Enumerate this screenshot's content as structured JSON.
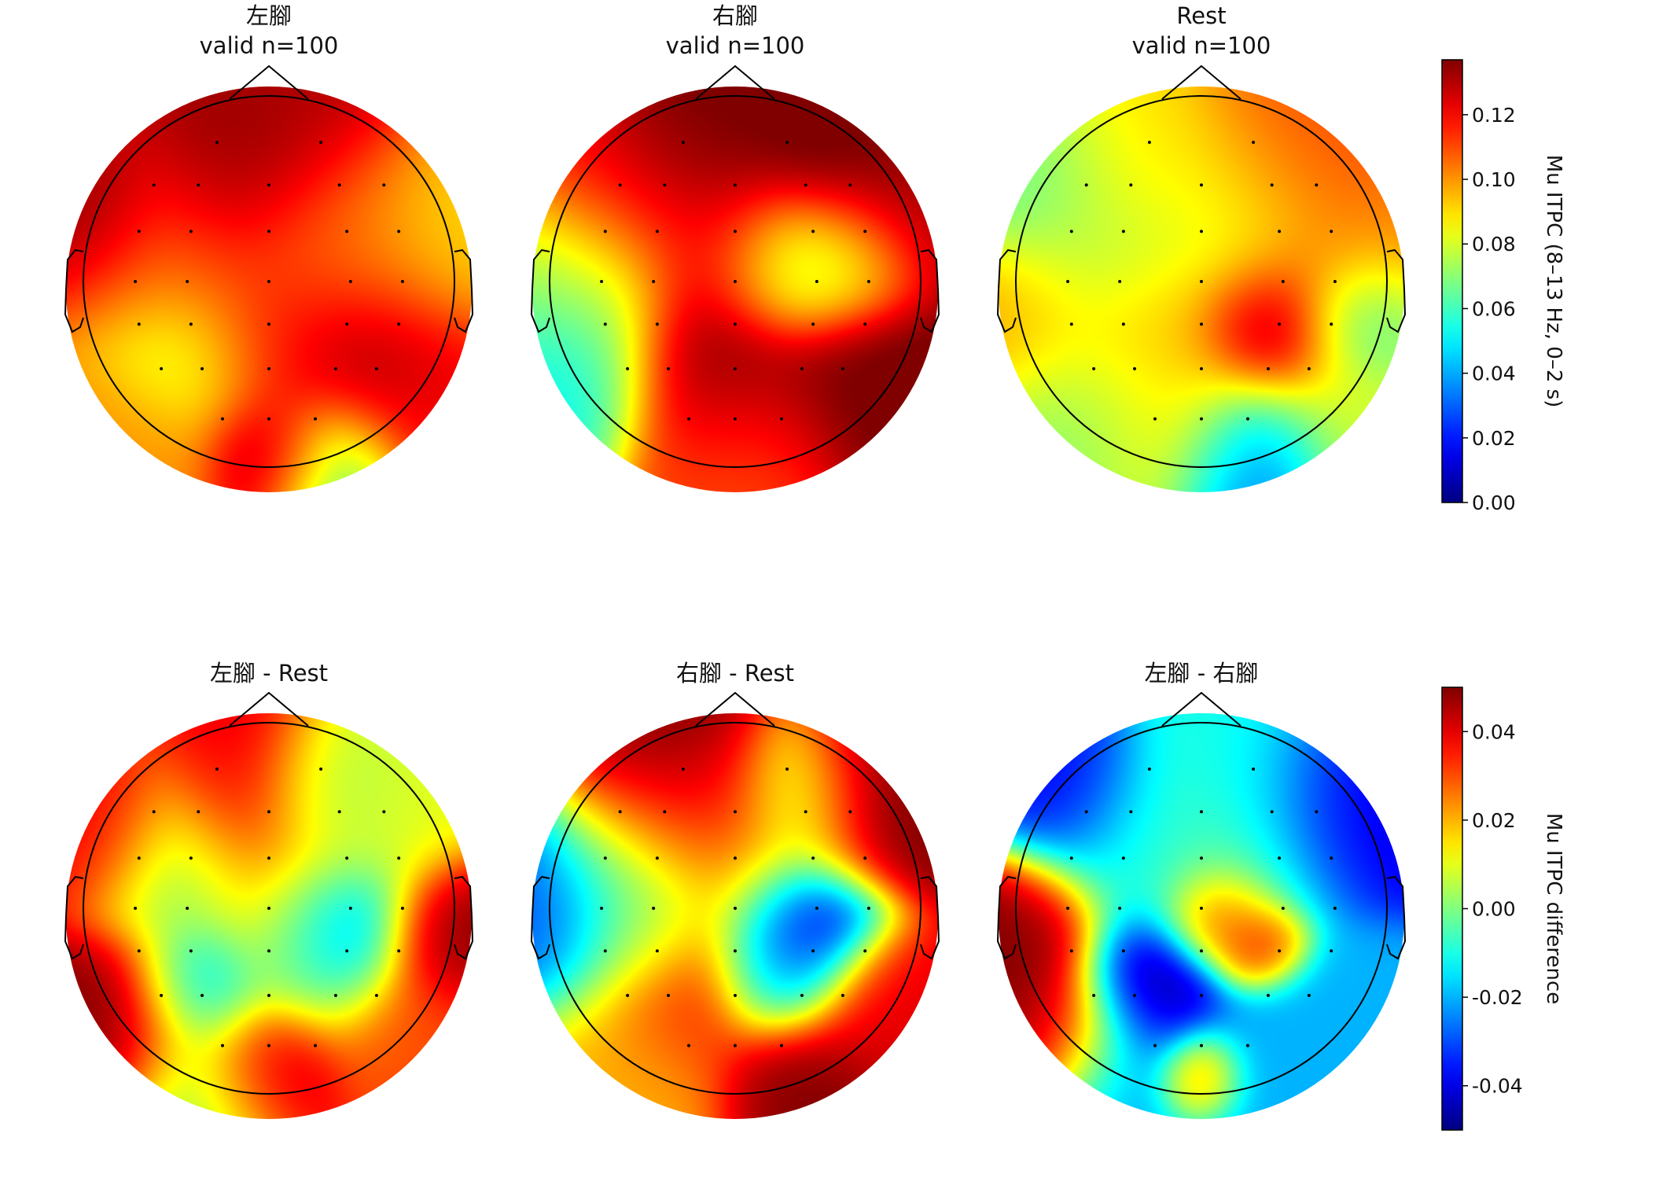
{
  "chart_data": [
    {
      "type": "heatmap",
      "subtype": "eeg-topomap",
      "title": "左腳",
      "subtitle": "valid n=100",
      "colormap": "jet",
      "colorbar_group": "itpc",
      "field_sources": [
        {
          "x": 0.0,
          "y": 0.62,
          "value": 0.13,
          "spread": 0.35
        },
        {
          "x": -0.2,
          "y": 0.58,
          "value": 0.14,
          "spread": 0.25
        },
        {
          "x": -0.85,
          "y": 0.4,
          "value": 0.14,
          "spread": 0.22
        },
        {
          "x": 0.75,
          "y": 0.2,
          "value": 0.09,
          "spread": 0.3
        },
        {
          "x": -0.5,
          "y": 0.2,
          "value": 0.1,
          "spread": 0.3
        },
        {
          "x": 0.3,
          "y": 0.22,
          "value": 0.1,
          "spread": 0.25
        },
        {
          "x": 0.45,
          "y": -0.3,
          "value": 0.14,
          "spread": 0.28
        },
        {
          "x": -0.35,
          "y": -0.35,
          "value": 0.07,
          "spread": 0.22
        },
        {
          "x": 0.0,
          "y": -0.8,
          "value": 0.14,
          "spread": 0.18
        },
        {
          "x": 0.3,
          "y": -0.85,
          "value": 0.06,
          "spread": 0.22
        },
        {
          "x": -0.6,
          "y": -0.75,
          "value": 0.1,
          "spread": 0.25
        },
        {
          "x": 0.8,
          "y": -0.55,
          "value": 0.12,
          "spread": 0.25
        },
        {
          "x": 0.0,
          "y": 0.0,
          "value": 0.11,
          "spread": 0.35
        },
        {
          "x": 0.0,
          "y": -0.3,
          "value": 0.12,
          "spread": 0.25
        }
      ]
    },
    {
      "type": "heatmap",
      "subtype": "eeg-topomap",
      "title": "右腳",
      "subtitle": "valid n=100",
      "colormap": "jet",
      "colorbar_group": "itpc",
      "field_sources": [
        {
          "x": -0.2,
          "y": 0.75,
          "value": 0.14,
          "spread": 0.25
        },
        {
          "x": 0.55,
          "y": 0.65,
          "value": 0.14,
          "spread": 0.3
        },
        {
          "x": 0.85,
          "y": 0.4,
          "value": 0.13,
          "spread": 0.25
        },
        {
          "x": -0.5,
          "y": 0.45,
          "value": 0.12,
          "spread": 0.3
        },
        {
          "x": 0.25,
          "y": 0.1,
          "value": 0.06,
          "spread": 0.2
        },
        {
          "x": 0.55,
          "y": 0.15,
          "value": 0.07,
          "spread": 0.2
        },
        {
          "x": -0.75,
          "y": 0.0,
          "value": 0.07,
          "spread": 0.28
        },
        {
          "x": -0.1,
          "y": -0.35,
          "value": 0.14,
          "spread": 0.28
        },
        {
          "x": 0.65,
          "y": -0.45,
          "value": 0.14,
          "spread": 0.3
        },
        {
          "x": -0.8,
          "y": -0.45,
          "value": 0.05,
          "spread": 0.25
        },
        {
          "x": 0.0,
          "y": -0.8,
          "value": 0.11,
          "spread": 0.3
        },
        {
          "x": 0.0,
          "y": 0.2,
          "value": 0.12,
          "spread": 0.25
        }
      ]
    },
    {
      "type": "heatmap",
      "subtype": "eeg-topomap",
      "title": "Rest",
      "subtitle": "valid n=100",
      "colormap": "jet",
      "colorbar_group": "itpc",
      "field_sources": [
        {
          "x": 0.5,
          "y": 0.6,
          "value": 0.11,
          "spread": 0.3
        },
        {
          "x": -0.45,
          "y": 0.55,
          "value": 0.09,
          "spread": 0.3
        },
        {
          "x": -0.8,
          "y": 0.5,
          "value": 0.06,
          "spread": 0.25
        },
        {
          "x": 0.15,
          "y": 0.3,
          "value": 0.08,
          "spread": 0.3
        },
        {
          "x": -0.5,
          "y": 0.1,
          "value": 0.07,
          "spread": 0.25
        },
        {
          "x": -0.85,
          "y": -0.1,
          "value": 0.1,
          "spread": 0.25
        },
        {
          "x": 0.8,
          "y": 0.1,
          "value": 0.1,
          "spread": 0.25
        },
        {
          "x": 0.35,
          "y": -0.2,
          "value": 0.14,
          "spread": 0.22
        },
        {
          "x": 0.8,
          "y": -0.15,
          "value": 0.05,
          "spread": 0.18
        },
        {
          "x": -0.3,
          "y": -0.2,
          "value": 0.1,
          "spread": 0.25
        },
        {
          "x": -0.55,
          "y": -0.55,
          "value": 0.07,
          "spread": 0.28
        },
        {
          "x": 0.25,
          "y": -0.8,
          "value": 0.03,
          "spread": 0.22
        },
        {
          "x": 0.7,
          "y": -0.6,
          "value": 0.08,
          "spread": 0.25
        },
        {
          "x": -0.1,
          "y": -0.6,
          "value": 0.09,
          "spread": 0.25
        }
      ]
    },
    {
      "type": "heatmap",
      "subtype": "eeg-topomap",
      "title": "左腳 - Rest",
      "subtitle": "",
      "colormap": "jet",
      "colorbar_group": "diff",
      "field_sources": [
        {
          "x": -0.1,
          "y": 0.55,
          "value": 0.04,
          "spread": 0.25
        },
        {
          "x": 0.3,
          "y": 0.55,
          "value": 0.0,
          "spread": 0.2
        },
        {
          "x": 0.55,
          "y": 0.45,
          "value": 0.01,
          "spread": 0.25
        },
        {
          "x": -0.85,
          "y": 0.4,
          "value": 0.04,
          "spread": 0.22
        },
        {
          "x": -0.45,
          "y": 0.2,
          "value": 0.0,
          "spread": 0.25
        },
        {
          "x": 0.1,
          "y": 0.1,
          "value": 0.02,
          "spread": 0.25
        },
        {
          "x": 0.35,
          "y": -0.05,
          "value": -0.04,
          "spread": 0.2
        },
        {
          "x": 0.85,
          "y": -0.1,
          "value": 0.05,
          "spread": 0.2
        },
        {
          "x": -0.35,
          "y": -0.35,
          "value": -0.02,
          "spread": 0.18
        },
        {
          "x": -0.75,
          "y": -0.5,
          "value": 0.05,
          "spread": 0.25
        },
        {
          "x": 0.0,
          "y": -0.75,
          "value": 0.05,
          "spread": 0.2
        },
        {
          "x": 0.7,
          "y": -0.6,
          "value": 0.03,
          "spread": 0.25
        },
        {
          "x": -0.3,
          "y": -0.85,
          "value": 0.0,
          "spread": 0.25
        },
        {
          "x": 0.2,
          "y": -0.2,
          "value": 0.0,
          "spread": 0.25
        }
      ]
    },
    {
      "type": "heatmap",
      "subtype": "eeg-topomap",
      "title": "右腳 - Rest",
      "subtitle": "",
      "colormap": "jet",
      "colorbar_group": "diff",
      "field_sources": [
        {
          "x": -0.35,
          "y": 0.7,
          "value": 0.05,
          "spread": 0.25
        },
        {
          "x": -0.1,
          "y": 0.5,
          "value": 0.04,
          "spread": 0.22
        },
        {
          "x": 0.3,
          "y": 0.55,
          "value": 0.0,
          "spread": 0.2
        },
        {
          "x": 0.65,
          "y": 0.55,
          "value": 0.05,
          "spread": 0.25
        },
        {
          "x": -0.45,
          "y": 0.3,
          "value": 0.01,
          "spread": 0.25
        },
        {
          "x": 0.0,
          "y": 0.2,
          "value": 0.02,
          "spread": 0.25
        },
        {
          "x": -0.85,
          "y": 0.0,
          "value": -0.03,
          "spread": 0.28
        },
        {
          "x": -0.45,
          "y": -0.05,
          "value": 0.0,
          "spread": 0.2
        },
        {
          "x": 0.3,
          "y": -0.05,
          "value": -0.05,
          "spread": 0.22
        },
        {
          "x": 0.2,
          "y": -0.3,
          "value": -0.02,
          "spread": 0.18
        },
        {
          "x": -0.25,
          "y": -0.35,
          "value": 0.04,
          "spread": 0.25
        },
        {
          "x": 0.7,
          "y": -0.45,
          "value": 0.04,
          "spread": 0.22
        },
        {
          "x": 0.3,
          "y": -0.8,
          "value": 0.05,
          "spread": 0.22
        },
        {
          "x": -0.5,
          "y": -0.7,
          "value": 0.02,
          "spread": 0.3
        }
      ]
    },
    {
      "type": "heatmap",
      "subtype": "eeg-topomap",
      "title": "左腳 - 右腳",
      "subtitle": "",
      "colormap": "jet",
      "colorbar_group": "diff",
      "field_sources": [
        {
          "x": -0.7,
          "y": 0.6,
          "value": -0.04,
          "spread": 0.22
        },
        {
          "x": 0.6,
          "y": 0.5,
          "value": -0.04,
          "spread": 0.25
        },
        {
          "x": 0.2,
          "y": 0.65,
          "value": -0.01,
          "spread": 0.25
        },
        {
          "x": -0.3,
          "y": 0.35,
          "value": -0.01,
          "spread": 0.28
        },
        {
          "x": -0.9,
          "y": -0.05,
          "value": 0.05,
          "spread": 0.22
        },
        {
          "x": -0.75,
          "y": -0.55,
          "value": 0.05,
          "spread": 0.22
        },
        {
          "x": 0.1,
          "y": 0.0,
          "value": 0.04,
          "spread": 0.15
        },
        {
          "x": 0.3,
          "y": -0.15,
          "value": 0.04,
          "spread": 0.12
        },
        {
          "x": -0.25,
          "y": -0.35,
          "value": -0.05,
          "spread": 0.2
        },
        {
          "x": 0.0,
          "y": -0.8,
          "value": 0.04,
          "spread": 0.12
        },
        {
          "x": 0.6,
          "y": -0.55,
          "value": -0.02,
          "spread": 0.25
        },
        {
          "x": -0.4,
          "y": -0.8,
          "value": -0.02,
          "spread": 0.25
        },
        {
          "x": 0.3,
          "y": -0.85,
          "value": -0.02,
          "spread": 0.25
        },
        {
          "x": 0.2,
          "y": 0.25,
          "value": 0.0,
          "spread": 0.25
        }
      ]
    }
  ],
  "colorbars": [
    {
      "group": "itpc",
      "label": "Mu ITPC (8–13 Hz, 0–2 s)",
      "range": [
        0.0,
        0.137
      ],
      "ticks": [
        0.0,
        0.02,
        0.04,
        0.06,
        0.08,
        0.1,
        0.12
      ],
      "tick_labels": [
        "0.00",
        "0.02",
        "0.04",
        "0.06",
        "0.08",
        "0.10",
        "0.12"
      ]
    },
    {
      "group": "diff",
      "label": "Mu ITPC difference",
      "range": [
        -0.05,
        0.05
      ],
      "ticks": [
        -0.04,
        -0.02,
        0.0,
        0.02,
        0.04
      ],
      "tick_labels": [
        "-0.04",
        "-0.02",
        "0.00",
        "0.02",
        "0.04"
      ]
    }
  ]
}
